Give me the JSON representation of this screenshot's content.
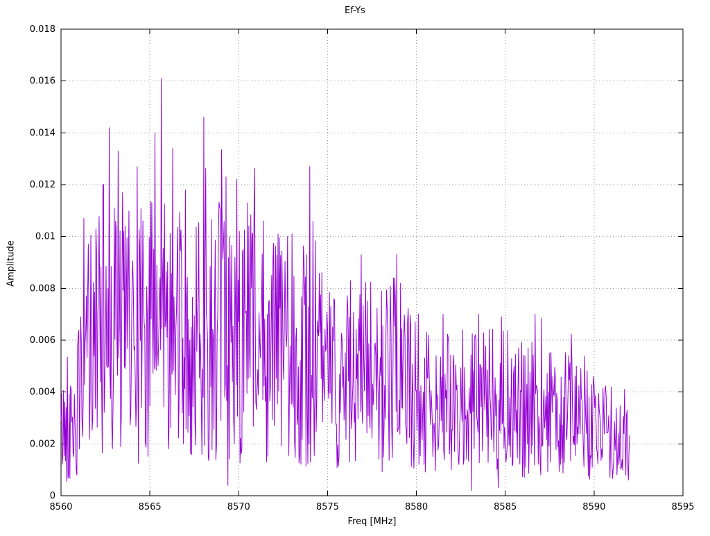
{
  "chart_data": {
    "type": "line",
    "title": "Ef-Ys",
    "xlabel": "Freq [MHz]",
    "ylabel": "Amplitude",
    "xlim": [
      8560,
      8595
    ],
    "ylim": [
      0,
      0.018
    ],
    "xticks": [
      8560,
      8565,
      8570,
      8575,
      8580,
      8585,
      8590,
      8595
    ],
    "xtick_labels": [
      "8560",
      "8565",
      "8570",
      "8575",
      "8580",
      "8585",
      "8590",
      "8595"
    ],
    "yticks": [
      0,
      0.002,
      0.004,
      0.006,
      0.008,
      0.01,
      0.012,
      0.014,
      0.016,
      0.018
    ],
    "ytick_labels": [
      "0",
      "0.002",
      "0.004",
      "0.006",
      "0.008",
      "0.01",
      "0.012",
      "0.014",
      "0.016",
      "0.018"
    ],
    "grid": "dotted",
    "legend": "none",
    "line_color": "#9400d3",
    "series_name": "Ef-Ys",
    "data_x_range": [
      8560,
      8592
    ],
    "points_per_mhz": 28,
    "noise_seed": 42,
    "min_floor": 0.0004,
    "max_cap": 0.0162,
    "envelope": [
      [
        8560.0,
        0.0042
      ],
      [
        8560.8,
        0.0048
      ],
      [
        8561.5,
        0.01
      ],
      [
        8562.5,
        0.0115
      ],
      [
        8563.5,
        0.011
      ],
      [
        8564.5,
        0.01
      ],
      [
        8565.5,
        0.012
      ],
      [
        8566.5,
        0.0105
      ],
      [
        8567.5,
        0.0095
      ],
      [
        8568.2,
        0.011
      ],
      [
        8569.5,
        0.0105
      ],
      [
        8570.5,
        0.0105
      ],
      [
        8571.5,
        0.0095
      ],
      [
        8572.5,
        0.0095
      ],
      [
        8573.5,
        0.009
      ],
      [
        8574.2,
        0.01
      ],
      [
        8575.0,
        0.0075
      ],
      [
        8576.0,
        0.0072
      ],
      [
        8577.0,
        0.008
      ],
      [
        8578.0,
        0.0075
      ],
      [
        8579.0,
        0.008
      ],
      [
        8580.0,
        0.0068
      ],
      [
        8581.0,
        0.006
      ],
      [
        8582.0,
        0.0058
      ],
      [
        8583.0,
        0.0062
      ],
      [
        8584.0,
        0.006
      ],
      [
        8585.0,
        0.0062
      ],
      [
        8586.0,
        0.0058
      ],
      [
        8587.0,
        0.0055
      ],
      [
        8588.0,
        0.005
      ],
      [
        8589.0,
        0.0052
      ],
      [
        8590.0,
        0.0045
      ],
      [
        8591.0,
        0.004
      ],
      [
        8592.0,
        0.003
      ]
    ],
    "peaks": [
      [
        8561.3,
        0.0107
      ],
      [
        8562.7,
        0.0142
      ],
      [
        8563.2,
        0.0133
      ],
      [
        8564.3,
        0.0127
      ],
      [
        8565.3,
        0.014
      ],
      [
        8565.65,
        0.0161
      ],
      [
        8566.3,
        0.0134
      ],
      [
        8567.0,
        0.0118
      ],
      [
        8568.05,
        0.0146
      ],
      [
        8569.3,
        0.0123
      ],
      [
        8569.9,
        0.0122
      ],
      [
        8570.5,
        0.0113
      ],
      [
        8571.4,
        0.0106
      ],
      [
        8572.2,
        0.0101
      ],
      [
        8573.0,
        0.0101
      ],
      [
        8574.0,
        0.0127
      ],
      [
        8576.3,
        0.0083
      ],
      [
        8576.9,
        0.0093
      ],
      [
        8578.9,
        0.0093
      ],
      [
        8581.5,
        0.007
      ],
      [
        8583.5,
        0.007
      ],
      [
        8584.8,
        0.0069
      ],
      [
        8586.3,
        0.0057
      ],
      [
        8587.5,
        0.0055
      ],
      [
        8589.0,
        0.005
      ]
    ],
    "nulls": [
      [
        8560.9,
        0.0008
      ],
      [
        8569.4,
        0.0004
      ],
      [
        8583.1,
        0.0002
      ],
      [
        8584.6,
        0.0003
      ],
      [
        8591.8,
        0.0008
      ]
    ]
  }
}
